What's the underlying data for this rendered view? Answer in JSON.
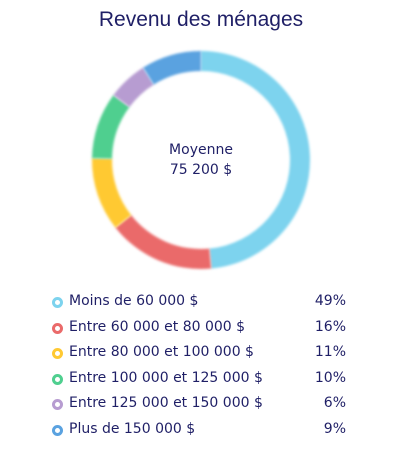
{
  "chart_data": {
    "type": "pie",
    "title": "Revenu des ménages",
    "center": {
      "label": "Moyenne",
      "value": "75 200 $"
    },
    "categories": [
      "Moins de 60 000 $",
      "Entre 60 000 et 80 000 $",
      "Entre 80 000 et 100 000 $",
      "Entre 100 000 et 125 000 $",
      "Entre 125 000 et 150 000 $",
      "Plus de 150 000 $"
    ],
    "values": [
      49,
      16,
      11,
      10,
      6,
      9
    ],
    "value_labels": [
      "49%",
      "16%",
      "11%",
      "10%",
      "6%",
      "9%"
    ],
    "colors": [
      "#7dd3ee",
      "#ea6a6a",
      "#ffc933",
      "#4fcf8f",
      "#b79cd1",
      "#5aa2e0"
    ],
    "legend": "bottom"
  }
}
